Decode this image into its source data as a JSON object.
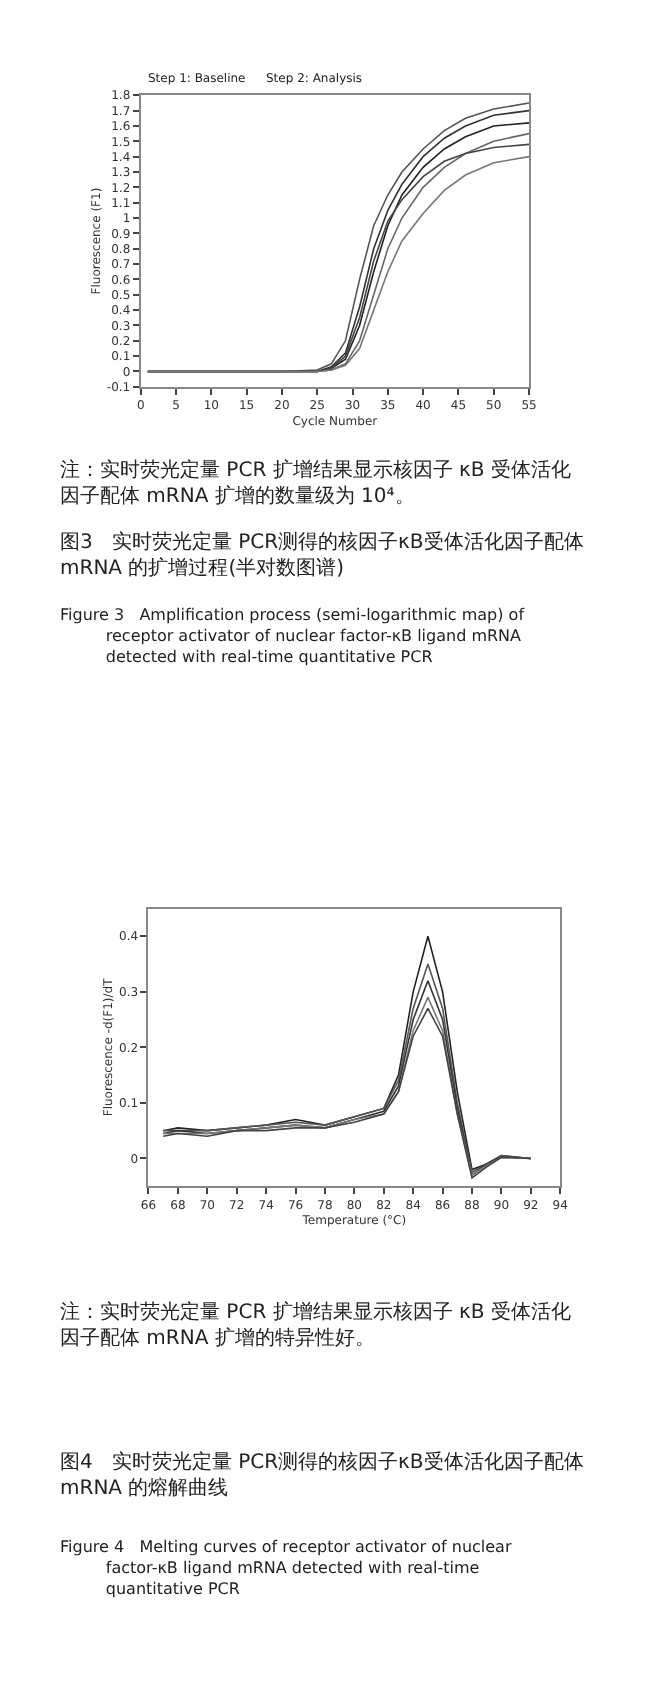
{
  "chart_data": [
    {
      "type": "line",
      "xlabel": "Cycle Number",
      "ylabel": "Fluorescence (F1)",
      "xlim": [
        0,
        55
      ],
      "ylim": [
        -0.1,
        1.8
      ],
      "xticks": [
        0,
        5,
        10,
        15,
        20,
        25,
        30,
        35,
        40,
        45,
        50,
        55
      ],
      "yticks": [
        -0.1,
        0,
        0.1,
        0.2,
        0.3,
        0.4,
        0.5,
        0.6,
        0.7,
        0.8,
        0.9,
        1,
        1.1,
        1.2,
        1.3,
        1.4,
        1.5,
        1.6,
        1.7,
        1.8
      ],
      "marker": "none",
      "line_style": "solid",
      "x": [
        1,
        10,
        20,
        25,
        27,
        29,
        31,
        33,
        35,
        37,
        40,
        43,
        46,
        50,
        55
      ],
      "series": [
        {
          "color": "#555555",
          "values": [
            0,
            0,
            0,
            0.01,
            0.05,
            0.2,
            0.6,
            0.95,
            1.15,
            1.3,
            1.45,
            1.57,
            1.65,
            1.71,
            1.75
          ]
        },
        {
          "color": "#333333",
          "values": [
            0,
            0,
            0,
            0,
            0.03,
            0.12,
            0.42,
            0.8,
            1.05,
            1.22,
            1.4,
            1.52,
            1.6,
            1.67,
            1.7
          ]
        },
        {
          "color": "#222222",
          "values": [
            0,
            0,
            0,
            0,
            0.02,
            0.08,
            0.3,
            0.65,
            0.95,
            1.15,
            1.33,
            1.45,
            1.53,
            1.6,
            1.62
          ]
        },
        {
          "color": "#666666",
          "values": [
            0,
            0,
            0,
            0,
            0.01,
            0.05,
            0.2,
            0.5,
            0.8,
            1.0,
            1.2,
            1.33,
            1.42,
            1.5,
            1.55
          ]
        },
        {
          "color": "#444444",
          "values": [
            0,
            0,
            0,
            0,
            0.02,
            0.1,
            0.35,
            0.72,
            0.98,
            1.12,
            1.27,
            1.37,
            1.42,
            1.46,
            1.48
          ]
        },
        {
          "color": "#777777",
          "values": [
            0,
            0,
            0,
            0,
            0.01,
            0.04,
            0.15,
            0.4,
            0.65,
            0.85,
            1.03,
            1.18,
            1.28,
            1.36,
            1.4
          ]
        }
      ],
      "annotations": [
        "Step 1: Baseline",
        "Step 2: Analysis",
        "注：实时荧光定量 PCR 扩增结果显示核因子 κB 受体活化因子配体 mRNA 扩增的数量级为 10⁴。",
        "图3   实时荧光定量 PCR测得的核因子κB受体活化因子配体 mRNA 的扩增过程(半对数图谱)",
        "Figure 3   Amplification process (semi-logarithmic map) of\n         receptor activator of nuclear factor-κB ligand mRNA\n         detected with real-time quantitative PCR"
      ]
    },
    {
      "type": "line",
      "xlabel": "Temperature (°C)",
      "ylabel": "Fluorescence -d(F1)/dT",
      "xlim": [
        66,
        94
      ],
      "ylim": [
        -0.05,
        0.45
      ],
      "xticks": [
        66,
        68,
        70,
        72,
        74,
        76,
        78,
        80,
        82,
        84,
        86,
        88,
        90,
        92,
        94
      ],
      "yticks": [
        0,
        0.1,
        0.2,
        0.3,
        0.4
      ],
      "marker": "none",
      "line_style": "solid",
      "x": [
        67,
        68,
        70,
        72,
        74,
        76,
        78,
        80,
        82,
        83,
        84,
        85,
        86,
        87,
        88,
        89,
        90,
        92
      ],
      "series": [
        {
          "color": "#222222",
          "values": [
            0.05,
            0.055,
            0.05,
            0.055,
            0.06,
            0.07,
            0.06,
            0.075,
            0.09,
            0.15,
            0.3,
            0.4,
            0.3,
            0.12,
            -0.02,
            -0.01,
            0.005,
            0
          ]
        },
        {
          "color": "#555555",
          "values": [
            0.05,
            0.05,
            0.05,
            0.055,
            0.06,
            0.065,
            0.06,
            0.075,
            0.09,
            0.14,
            0.27,
            0.35,
            0.27,
            0.1,
            -0.025,
            -0.01,
            0.005,
            0
          ]
        },
        {
          "color": "#333333",
          "values": [
            0.045,
            0.05,
            0.045,
            0.05,
            0.055,
            0.06,
            0.055,
            0.07,
            0.085,
            0.13,
            0.25,
            0.32,
            0.25,
            0.09,
            -0.03,
            -0.01,
            0.003,
            0
          ]
        },
        {
          "color": "#777777",
          "values": [
            0.045,
            0.045,
            0.045,
            0.05,
            0.055,
            0.06,
            0.055,
            0.07,
            0.08,
            0.12,
            0.23,
            0.29,
            0.23,
            0.08,
            -0.03,
            -0.012,
            0.002,
            0
          ]
        },
        {
          "color": "#444444",
          "values": [
            0.04,
            0.045,
            0.04,
            0.05,
            0.05,
            0.055,
            0.055,
            0.065,
            0.08,
            0.12,
            0.22,
            0.27,
            0.22,
            0.08,
            -0.035,
            -0.015,
            0.002,
            0
          ]
        }
      ],
      "annotations": [
        "注：实时荧光定量 PCR 扩增结果显示核因子 κB 受体活化因子配体 mRNA 扩增的特异性好。",
        "图4   实时荧光定量 PCR测得的核因子κB受体活化因子配体 mRNA 的熔解曲线",
        "Figure 4   Melting curves of receptor activator of nuclear\n         factor-κB ligand mRNA detected with real-time\n         quantitative PCR"
      ]
    }
  ]
}
